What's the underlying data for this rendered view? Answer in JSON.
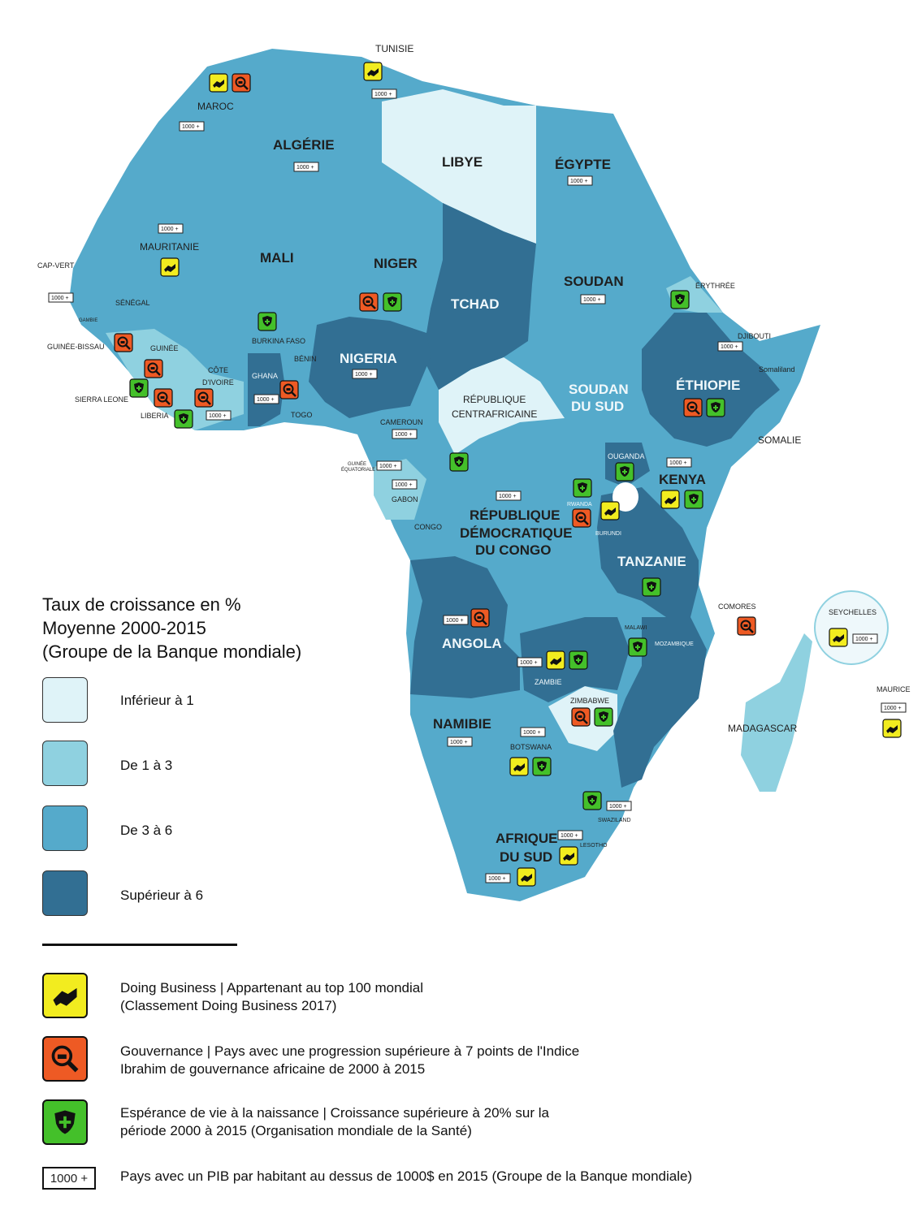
{
  "legend": {
    "title_lines": [
      "Taux de croissance en %",
      "Moyenne 2000-2015",
      "(Groupe de la Banque mondiale)"
    ],
    "categories": [
      {
        "label": "Inférieur à 1",
        "color": "#dff3f8"
      },
      {
        "label": "De 1 à 3",
        "color": "#8fd1e0"
      },
      {
        "label": "De 3 à 6",
        "color": "#55aacb"
      },
      {
        "label": "Supérieur à 6",
        "color": "#326f93"
      }
    ],
    "indicators": [
      {
        "label_lines": [
          "Doing Business | Appartenant au top 100 mondial",
          "(Classement Doing Business 2017)"
        ],
        "color": "#f2ec1f",
        "icon": "handshake-icon"
      },
      {
        "label_lines": [
          "Gouvernance | Pays avec une progression supérieure à 7 points de l'Indice",
          "Ibrahim de gouvernance africaine de 2000 à 2015"
        ],
        "color": "#ee5a24",
        "icon": "governance-magnifier-icon"
      },
      {
        "label_lines": [
          "Espérance de vie à la naissance | Croissance supérieure à  20% sur la",
          "période 2000 à 2015 (Organisation mondiale de la Santé)"
        ],
        "color": "#44c02a",
        "icon": "health-shield-icon"
      }
    ],
    "gdp_badge": "1000 +",
    "gdp_label": "Pays avec un PIB par habitant au dessus de 1000$ en 2015 (Groupe de la Banque mondiale)"
  },
  "countries": {
    "tunisie": "TUNISIE",
    "maroc": "MAROC",
    "algerie": "ALGÉRIE",
    "libye": "LIBYE",
    "egypte": "ÉGYPTE",
    "mauritanie": "MAURITANIE",
    "mali": "MALI",
    "niger": "NIGER",
    "tchad": "TCHAD",
    "soudan": "SOUDAN",
    "erythree": "ÉRYTHRÉE",
    "cap_vert": "CAP-VERT",
    "senegal": "SÉNÉGAL",
    "gambie": "GAMBIE",
    "guinee_bissau": "GUINÉE-BISSAU",
    "guinee": "GUINÉE",
    "burkina": "BURKINA FASO",
    "benin": "BÉNIN",
    "nigeria": "NIGERIA",
    "djibouti": "DJIBOUTI",
    "somaliland": "Somaliland",
    "ethiopie": "ÉTHIOPIE",
    "soudan_sud_1": "SOUDAN",
    "soudan_sud_2": "DU SUD",
    "rca_1": "RÉPUBLIQUE",
    "rca_2": "CENTRAFRICAINE",
    "cote_1": "CÔTE",
    "cote_2": "D'IVOIRE",
    "ghana": "GHANA",
    "sierra_leone": "SIERRA LEONE",
    "liberia": "LIBERIA",
    "togo": "TOGO",
    "cameroun": "CAMEROUN",
    "guinee_eq_1": "GUINÉE",
    "guinee_eq_2": "ÉQUATORIALE",
    "gabon": "GABON",
    "congo": "CONGO",
    "rdc_1": "RÉPUBLIQUE",
    "rdc_2": "DÉMOCRATIQUE",
    "rdc_3": "DU CONGO",
    "ouganda": "OUGANDA",
    "kenya": "KENYA",
    "somalie": "SOMALIE",
    "rwanda": "RWANDA",
    "burundi": "BURUNDI",
    "tanzanie": "TANZANIE",
    "comores": "COMORES",
    "seychelles": "SEYCHELLES",
    "angola": "ANGOLA",
    "malawi": "MALAWI",
    "mozambique": "MOZAMBIQUE",
    "zambie": "ZAMBIE",
    "maurice": "MAURICE",
    "zimbabwe": "ZIMBABWE",
    "namibie": "NAMIBIE",
    "madagascar": "MADAGASCAR",
    "botswana": "BOTSWANA",
    "swaziland": "SWAZILAND",
    "afrique_sud_1": "AFRIQUE",
    "afrique_sud_2": "DU SUD",
    "lesotho": "LESOTHO"
  }
}
